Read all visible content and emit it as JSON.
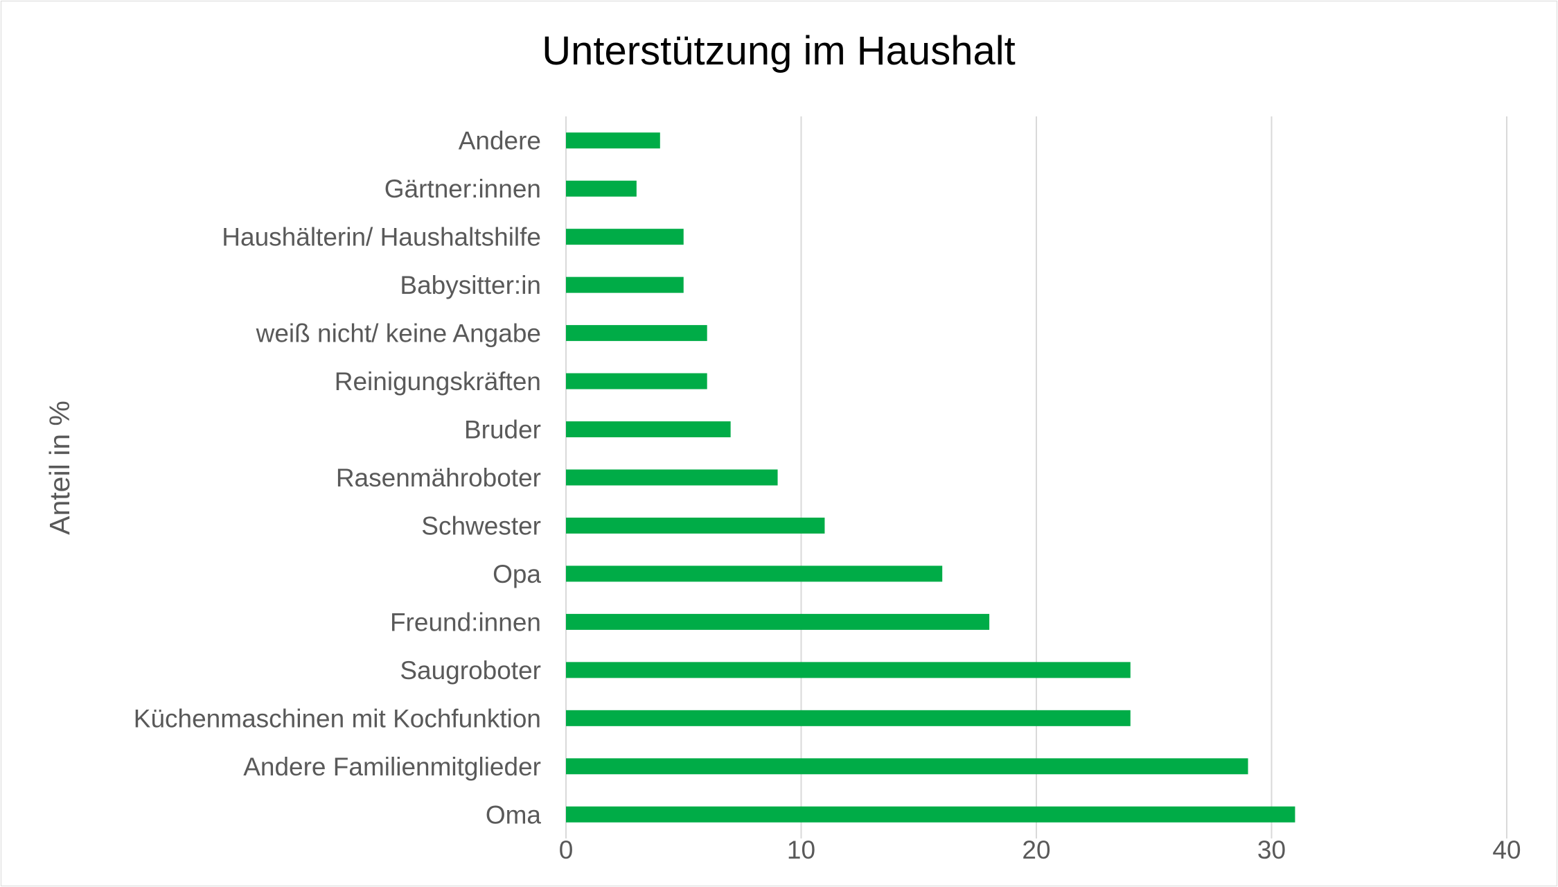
{
  "chart_data": {
    "type": "bar",
    "orientation": "horizontal",
    "title": "Unterstützung im Haushalt",
    "ylabel": "Anteil in %",
    "xlabel": "",
    "categories": [
      "Oma",
      "Andere Familienmitglieder",
      "Küchenmaschinen mit Kochfunktion",
      "Saugroboter",
      "Freund:innen",
      "Opa",
      "Schwester",
      "Rasenmähroboter",
      "Bruder",
      "Reinigungskräften",
      "weiß nicht/ keine Angabe",
      "Babysitter:in",
      "Haushälterin/ Haushaltshilfe",
      "Gärtner:innen",
      "Andere"
    ],
    "values": [
      31,
      29,
      24,
      24,
      18,
      16,
      11,
      9,
      7,
      6,
      6,
      5,
      5,
      3,
      4
    ],
    "xlim": [
      0,
      40
    ],
    "xticks": [
      "0",
      "10",
      "20",
      "30",
      "40"
    ],
    "grid": true,
    "legend": "none",
    "bar_color": "#00ac47",
    "grid_color": "#d9d9d9"
  }
}
